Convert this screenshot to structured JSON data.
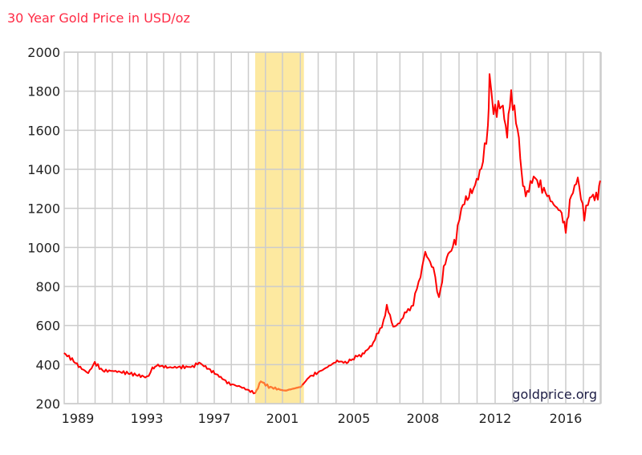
{
  "chart_data": {
    "type": "line",
    "title": "30 Year Gold Price in USD/oz",
    "xlabel": "",
    "ylabel": "",
    "watermark": "goldprice.org",
    "ylim": [
      200,
      2000
    ],
    "yticks": [
      "2000",
      "1800",
      "1600",
      "1400",
      "1200",
      "1000",
      "800",
      "600",
      "400",
      "200"
    ],
    "xlim": [
      1988.2,
      2018.0
    ],
    "xticks": [
      {
        "label": "1989",
        "year": 1989
      },
      {
        "label": "1993",
        "year": 1993
      },
      {
        "label": "1997",
        "year": 1997
      },
      {
        "label": "2001",
        "year": 2001
      },
      {
        "label": "2005",
        "year": 2005
      },
      {
        "label": "2008",
        "year": 2008
      },
      {
        "label": "2012",
        "year": 2012
      },
      {
        "label": "2016",
        "year": 2016
      }
    ],
    "grid": true,
    "highlight_range": [
      1999.4,
      2002.2
    ],
    "colors": {
      "line": "#ff0000",
      "highlight_line": "#ff7a30",
      "highlight_band": "#fde9a0",
      "grid": "#cccccc",
      "title": "#ff2a44"
    },
    "series": [
      {
        "points": [
          [
            1988.2,
            459
          ],
          [
            1988.67,
            426
          ],
          [
            1989.14,
            385
          ],
          [
            1989.6,
            356
          ],
          [
            1989.98,
            410
          ],
          [
            1990.44,
            368
          ],
          [
            1991.0,
            368
          ],
          [
            1991.93,
            356
          ],
          [
            1993.0,
            335
          ],
          [
            1993.33,
            377
          ],
          [
            1993.57,
            397
          ],
          [
            1994.29,
            385
          ],
          [
            1995.71,
            389
          ],
          [
            1996.1,
            410
          ],
          [
            1996.67,
            377
          ],
          [
            1997.38,
            335
          ],
          [
            1997.85,
            303
          ],
          [
            1998.55,
            286
          ],
          [
            1999.4,
            253
          ],
          [
            1999.73,
            315
          ],
          [
            2000.2,
            286
          ],
          [
            2001.13,
            266
          ],
          [
            2002.03,
            286
          ],
          [
            2002.48,
            335
          ],
          [
            2003.16,
            368
          ],
          [
            2004.06,
            418
          ],
          [
            2004.6,
            410
          ],
          [
            2005.31,
            451
          ],
          [
            2005.84,
            508
          ],
          [
            2006.29,
            623
          ],
          [
            2006.43,
            693
          ],
          [
            2006.71,
            590
          ],
          [
            2007.06,
            631
          ],
          [
            2007.58,
            713
          ],
          [
            2008.13,
            973
          ],
          [
            2008.58,
            890
          ],
          [
            2008.89,
            738
          ],
          [
            2009.24,
            932
          ],
          [
            2009.82,
            1034
          ],
          [
            2010.13,
            1207
          ],
          [
            2010.8,
            1301
          ],
          [
            2011.24,
            1404
          ],
          [
            2011.6,
            1609
          ],
          [
            2011.69,
            1885
          ],
          [
            2011.91,
            1692
          ],
          [
            2012.36,
            1733
          ],
          [
            2012.68,
            1589
          ],
          [
            2012.91,
            1782
          ],
          [
            2013.27,
            1609
          ],
          [
            2013.5,
            1383
          ],
          [
            2013.73,
            1260
          ],
          [
            2014.18,
            1363
          ],
          [
            2014.86,
            1281
          ],
          [
            2015.32,
            1219
          ],
          [
            2015.77,
            1178
          ],
          [
            2016.0,
            1075
          ],
          [
            2016.23,
            1240
          ],
          [
            2016.68,
            1355
          ],
          [
            2017.05,
            1157
          ],
          [
            2017.36,
            1260
          ],
          [
            2017.82,
            1260
          ],
          [
            2017.95,
            1342
          ]
        ]
      }
    ]
  }
}
